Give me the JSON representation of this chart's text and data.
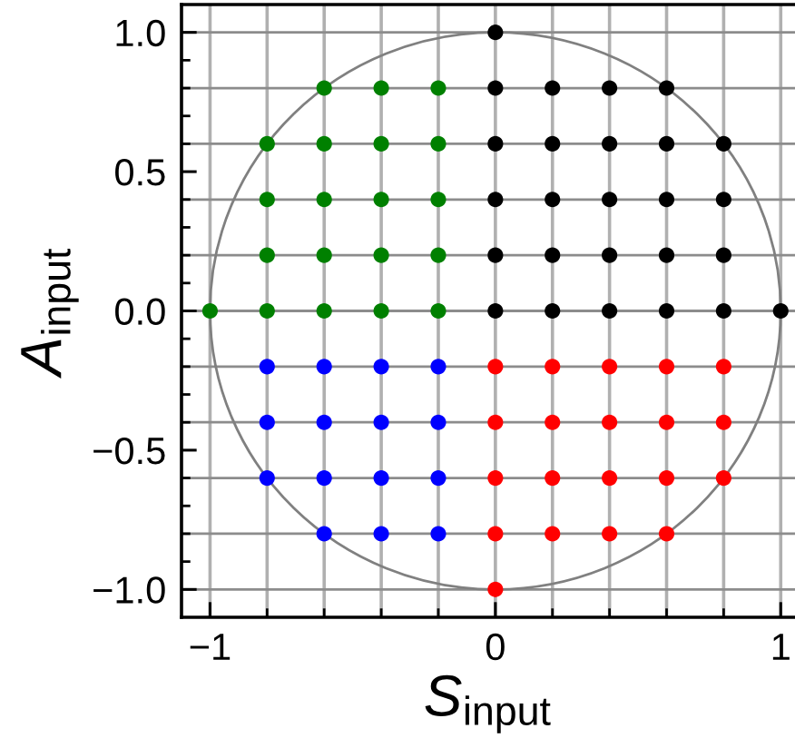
{
  "chart_data": {
    "type": "scatter",
    "xlabel": "S$_{input}$",
    "ylabel": "A$_{input}$",
    "marker": "circle",
    "xlim": [
      -1.1,
      1.05
    ],
    "ylim": [
      -1.1,
      1.1
    ],
    "xticks": [
      {
        "value": -1,
        "label": "−1"
      },
      {
        "value": -0.8,
        "label": null
      },
      {
        "value": -0.6,
        "label": null
      },
      {
        "value": -0.4,
        "label": null
      },
      {
        "value": -0.2,
        "label": null
      },
      0,
      {
        "value": 0.2,
        "label": null
      },
      {
        "value": 0.4,
        "label": null
      },
      {
        "value": 0.6,
        "label": null
      },
      {
        "value": 0.8,
        "label": null
      },
      1
    ],
    "yticks": [
      {
        "value": -1.0,
        "label": "−1.0"
      },
      {
        "value": -0.9,
        "label": null
      },
      {
        "value": -0.8,
        "label": null
      },
      {
        "value": -0.7,
        "label": null
      },
      {
        "value": -0.6,
        "label": null
      },
      {
        "value": -0.5,
        "label": "−0.5"
      },
      {
        "value": -0.4,
        "label": null
      },
      {
        "value": -0.3,
        "label": null
      },
      {
        "value": -0.2,
        "label": null
      },
      {
        "value": -0.1,
        "label": null
      },
      {
        "value": 0.0,
        "label": "0.0"
      },
      {
        "value": 0.1,
        "label": null
      },
      {
        "value": 0.2,
        "label": null
      },
      {
        "value": 0.3,
        "label": null
      },
      {
        "value": 0.4,
        "label": null
      },
      {
        "value": 0.5,
        "label": "0.5"
      },
      {
        "value": 0.6,
        "label": null
      },
      {
        "value": 0.7,
        "label": null
      },
      {
        "value": 0.8,
        "label": null
      },
      {
        "value": 0.9,
        "label": null
      },
      {
        "value": 1.0,
        "label": "1.0"
      }
    ],
    "ref_lines": [
      {
        "axis": "x",
        "value": -1.0,
        "color": "#b0b0b0"
      },
      {
        "axis": "x",
        "value": -0.8,
        "color": "#b0b0b0"
      },
      {
        "axis": "x",
        "value": -0.6,
        "color": "#b0b0b0"
      },
      {
        "axis": "x",
        "value": -0.4,
        "color": "#b0b0b0"
      },
      {
        "axis": "x",
        "value": -0.2,
        "color": "#b0b0b0"
      },
      {
        "axis": "x",
        "value": 0.0,
        "color": "#b0b0b0"
      },
      {
        "axis": "x",
        "value": 0.2,
        "color": "#b0b0b0"
      },
      {
        "axis": "x",
        "value": 0.4,
        "color": "#b0b0b0"
      },
      {
        "axis": "x",
        "value": 0.6,
        "color": "#b0b0b0"
      },
      {
        "axis": "x",
        "value": 0.8,
        "color": "#b0b0b0"
      },
      {
        "axis": "x",
        "value": 1.0,
        "color": "#b0b0b0"
      },
      {
        "axis": "y",
        "value": -1.0,
        "color": "#8c8c8c"
      },
      {
        "axis": "y",
        "value": -0.8,
        "color": "#8c8c8c"
      },
      {
        "axis": "y",
        "value": -0.6,
        "color": "#8c8c8c"
      },
      {
        "axis": "y",
        "value": -0.4,
        "color": "#8c8c8c"
      },
      {
        "axis": "y",
        "value": -0.2,
        "color": "#8c8c8c"
      },
      {
        "axis": "y",
        "value": 0.0,
        "color": "#8c8c8c"
      },
      {
        "axis": "y",
        "value": 0.2,
        "color": "#8c8c8c"
      },
      {
        "axis": "y",
        "value": 0.4,
        "color": "#8c8c8c"
      },
      {
        "axis": "y",
        "value": 0.6,
        "color": "#8c8c8c"
      },
      {
        "axis": "y",
        "value": 0.8,
        "color": "#8c8c8c"
      },
      {
        "axis": "y",
        "value": 1.0,
        "color": "#8c8c8c"
      }
    ],
    "series": [
      {
        "color": "#000000",
        "x": [
          0,
          0,
          0.2,
          0.4,
          0.6,
          0,
          0.2,
          0.4,
          0.6,
          0.8,
          0,
          0.2,
          0.4,
          0.6,
          0.8,
          0,
          0.2,
          0.4,
          0.6,
          0.8,
          0,
          0.2,
          0.4,
          0.6,
          0.8,
          1
        ],
        "values": [
          1,
          0.8,
          0.8,
          0.8,
          0.8,
          0.6,
          0.6,
          0.6,
          0.6,
          0.6,
          0.4,
          0.4,
          0.4,
          0.4,
          0.4,
          0.2,
          0.2,
          0.2,
          0.2,
          0.2,
          0,
          0,
          0,
          0,
          0,
          0
        ]
      },
      {
        "color": "#008000",
        "x": [
          -0.6,
          -0.4,
          -0.2,
          -0.8,
          -0.6,
          -0.4,
          -0.2,
          -0.8,
          -0.6,
          -0.4,
          -0.2,
          -0.8,
          -0.6,
          -0.4,
          -0.2,
          -1,
          -0.8,
          -0.6,
          -0.4,
          -0.2
        ],
        "values": [
          0.8,
          0.8,
          0.8,
          0.6,
          0.6,
          0.6,
          0.6,
          0.4,
          0.4,
          0.4,
          0.4,
          0.2,
          0.2,
          0.2,
          0.2,
          0,
          0,
          0,
          0,
          0
        ]
      },
      {
        "color": "#0000ff",
        "x": [
          -0.8,
          -0.6,
          -0.4,
          -0.2,
          -0.8,
          -0.6,
          -0.4,
          -0.2,
          -0.8,
          -0.6,
          -0.4,
          -0.2,
          -0.6,
          -0.4,
          -0.2
        ],
        "values": [
          -0.2,
          -0.2,
          -0.2,
          -0.2,
          -0.4,
          -0.4,
          -0.4,
          -0.4,
          -0.6,
          -0.6,
          -0.6,
          -0.6,
          -0.8,
          -0.8,
          -0.8
        ]
      },
      {
        "color": "#ff0000",
        "x": [
          0,
          0.2,
          0.4,
          0.6,
          0.8,
          0,
          0.2,
          0.4,
          0.6,
          0.8,
          0,
          0.2,
          0.4,
          0.6,
          0.8,
          0,
          0.2,
          0.4,
          0.6,
          0
        ],
        "values": [
          -0.2,
          -0.2,
          -0.2,
          -0.2,
          -0.2,
          -0.4,
          -0.4,
          -0.4,
          -0.4,
          -0.4,
          -0.6,
          -0.6,
          -0.6,
          -0.6,
          -0.6,
          -0.8,
          -0.8,
          -0.8,
          -0.8,
          -1
        ]
      }
    ]
  }
}
